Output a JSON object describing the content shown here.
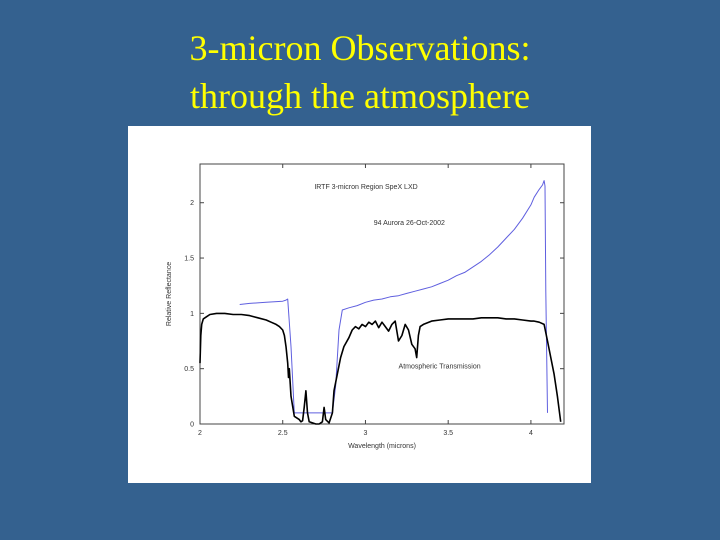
{
  "slide": {
    "title_line1": "3-micron Observations:",
    "title_line2": "through the atmosphere"
  },
  "colors": {
    "background": "#34618f",
    "title": "#ffff00",
    "panel": "#ffffff",
    "series_reflectance": "#5f5fdf",
    "series_transmission": "#000000"
  },
  "chart_data": {
    "type": "line",
    "title": "IRTF 3-micron Region SpeX LXD",
    "xlabel": "Wavelength (microns)",
    "ylabel": "Relative Reflectance",
    "xlim": [
      2.0,
      4.2
    ],
    "ylim": [
      0,
      2.35
    ],
    "xticks": [
      "2",
      "2.5",
      "3",
      "3.5",
      "4"
    ],
    "xtick_values": [
      2,
      2.5,
      3,
      3.5,
      4
    ],
    "yticks": [
      "0",
      "0.5",
      "1",
      "1.5",
      "2"
    ],
    "ytick_values": [
      0,
      0.5,
      1,
      1.5,
      2
    ],
    "grid": false,
    "legend": "none",
    "annotations": [
      {
        "text": "94 Aurora  26-Oct-2002",
        "x": 3.05,
        "y": 1.8
      },
      {
        "text": "Atmospheric Transmission",
        "x": 3.2,
        "y": 0.5
      }
    ],
    "series": [
      {
        "x": [
          2.24,
          2.3,
          2.4,
          2.5,
          2.52,
          2.53,
          2.55,
          2.57,
          2.6,
          2.65,
          2.7,
          2.75,
          2.8,
          2.82,
          2.84,
          2.86,
          2.9,
          2.95,
          3.0,
          3.05,
          3.1,
          3.15,
          3.2,
          3.25,
          3.3,
          3.35,
          3.4,
          3.45,
          3.5,
          3.55,
          3.6,
          3.65,
          3.7,
          3.75,
          3.8,
          3.85,
          3.9,
          3.95,
          4.0,
          4.02,
          4.05,
          4.07,
          4.08,
          4.085,
          4.09,
          4.1
        ],
        "y": [
          1.08,
          1.09,
          1.1,
          1.11,
          1.12,
          1.13,
          0.7,
          0.1,
          0.1,
          0.1,
          0.1,
          0.1,
          0.1,
          0.35,
          0.85,
          1.03,
          1.05,
          1.07,
          1.1,
          1.12,
          1.13,
          1.15,
          1.16,
          1.18,
          1.2,
          1.22,
          1.24,
          1.27,
          1.3,
          1.34,
          1.37,
          1.42,
          1.47,
          1.53,
          1.6,
          1.68,
          1.76,
          1.86,
          1.98,
          2.05,
          2.12,
          2.16,
          2.2,
          2.15,
          1.2,
          0.1
        ]
      },
      {
        "x": [
          2.0,
          2.005,
          2.01,
          2.02,
          2.04,
          2.06,
          2.1,
          2.15,
          2.2,
          2.25,
          2.3,
          2.35,
          2.4,
          2.43,
          2.46,
          2.48,
          2.5,
          2.51,
          2.52,
          2.53,
          2.535,
          2.54,
          2.55,
          2.57,
          2.6,
          2.61,
          2.62,
          2.63,
          2.64,
          2.65,
          2.66,
          2.7,
          2.72,
          2.74,
          2.75,
          2.76,
          2.78,
          2.8,
          2.81,
          2.83,
          2.85,
          2.87,
          2.9,
          2.92,
          2.94,
          2.96,
          2.98,
          3.0,
          3.02,
          3.04,
          3.06,
          3.08,
          3.1,
          3.12,
          3.14,
          3.16,
          3.18,
          3.2,
          3.22,
          3.24,
          3.26,
          3.28,
          3.3,
          3.31,
          3.32,
          3.33,
          3.35,
          3.4,
          3.45,
          3.5,
          3.55,
          3.6,
          3.65,
          3.7,
          3.75,
          3.8,
          3.85,
          3.9,
          3.95,
          4.0,
          4.02,
          4.05,
          4.08,
          4.1,
          4.12,
          4.14,
          4.16,
          4.18
        ],
        "y": [
          0.55,
          0.8,
          0.9,
          0.95,
          0.97,
          0.99,
          1.0,
          1.0,
          0.99,
          0.99,
          0.98,
          0.96,
          0.94,
          0.92,
          0.9,
          0.88,
          0.85,
          0.8,
          0.7,
          0.55,
          0.42,
          0.5,
          0.25,
          0.07,
          0.04,
          0.02,
          0.03,
          0.15,
          0.3,
          0.1,
          0.02,
          0.0,
          0.0,
          0.02,
          0.15,
          0.04,
          0.01,
          0.1,
          0.3,
          0.45,
          0.6,
          0.7,
          0.78,
          0.85,
          0.88,
          0.86,
          0.9,
          0.88,
          0.92,
          0.9,
          0.93,
          0.87,
          0.92,
          0.88,
          0.84,
          0.9,
          0.93,
          0.75,
          0.8,
          0.9,
          0.85,
          0.72,
          0.68,
          0.6,
          0.8,
          0.88,
          0.9,
          0.93,
          0.94,
          0.95,
          0.95,
          0.95,
          0.95,
          0.96,
          0.96,
          0.96,
          0.95,
          0.95,
          0.94,
          0.93,
          0.93,
          0.92,
          0.9,
          0.75,
          0.6,
          0.45,
          0.25,
          0.02
        ]
      }
    ]
  }
}
